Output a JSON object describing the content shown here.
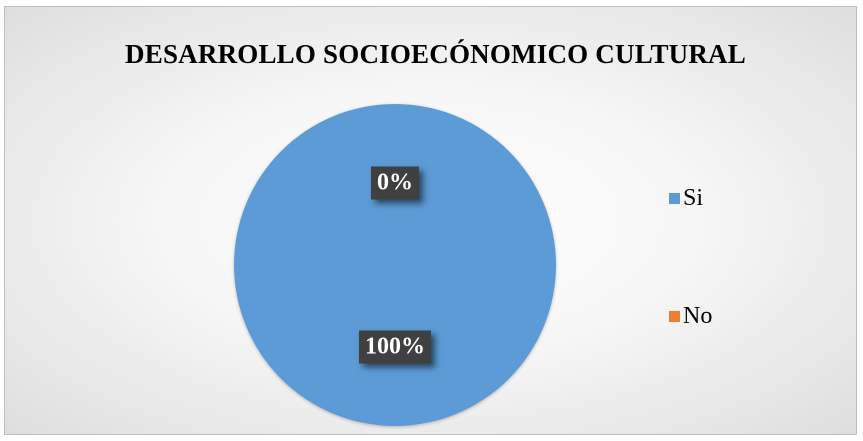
{
  "chart_data": {
    "type": "pie",
    "title": "DESARROLLO SOCIOECÓNOMICO CULTURAL",
    "categories": [
      "Si",
      "No"
    ],
    "values": [
      100,
      0
    ],
    "data_labels": [
      "100%",
      "0%"
    ],
    "colors": [
      "#5b9bd5",
      "#ed7d31"
    ],
    "legend_position": "right"
  }
}
